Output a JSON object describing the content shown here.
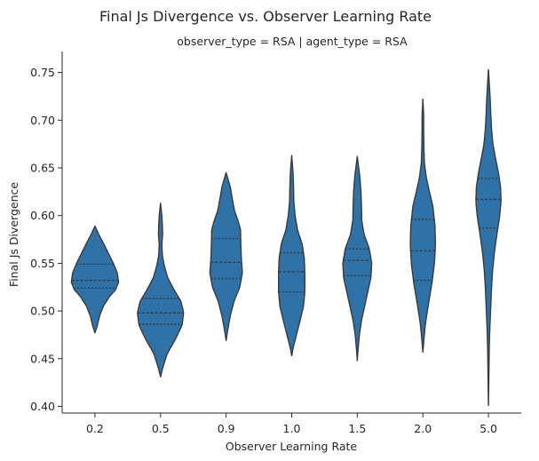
{
  "chart_data": {
    "type": "violin",
    "title": "Final Js Divergence vs. Observer Learning Rate",
    "subtitle": "observer_type = RSA | agent_type = RSA",
    "xlabel": "Observer Learning Rate",
    "ylabel": "Final Js Divergence",
    "ylim": [
      0.393,
      0.772
    ],
    "yticks": [
      "0.40",
      "0.45",
      "0.50",
      "0.55",
      "0.60",
      "0.65",
      "0.70",
      "0.75"
    ],
    "categories": [
      "0.2",
      "0.5",
      "0.9",
      "1.0",
      "1.5",
      "2.0",
      "5.0"
    ],
    "fill_color": "#2f72a8",
    "edge_color": "#3a3a3a",
    "inner": "quartile",
    "violins": [
      {
        "category": "0.2",
        "min": 0.477,
        "max": 0.589,
        "q1": 0.524,
        "median": 0.532,
        "q3": 0.549,
        "profile": [
          [
            0.477,
            0.0
          ],
          [
            0.483,
            0.07
          ],
          [
            0.495,
            0.18
          ],
          [
            0.505,
            0.32
          ],
          [
            0.515,
            0.55
          ],
          [
            0.522,
            0.78
          ],
          [
            0.53,
            0.9
          ],
          [
            0.54,
            0.85
          ],
          [
            0.55,
            0.7
          ],
          [
            0.56,
            0.52
          ],
          [
            0.57,
            0.34
          ],
          [
            0.58,
            0.15
          ],
          [
            0.589,
            0.0
          ]
        ]
      },
      {
        "category": "0.5",
        "min": 0.431,
        "max": 0.613,
        "q1": 0.486,
        "median": 0.498,
        "q3": 0.513,
        "profile": [
          [
            0.431,
            0.0
          ],
          [
            0.44,
            0.08
          ],
          [
            0.455,
            0.25
          ],
          [
            0.47,
            0.56
          ],
          [
            0.485,
            0.82
          ],
          [
            0.498,
            0.88
          ],
          [
            0.51,
            0.78
          ],
          [
            0.522,
            0.52
          ],
          [
            0.535,
            0.27
          ],
          [
            0.548,
            0.14
          ],
          [
            0.558,
            0.07
          ],
          [
            0.57,
            0.05
          ],
          [
            0.58,
            0.08
          ],
          [
            0.59,
            0.07
          ],
          [
            0.6,
            0.05
          ],
          [
            0.613,
            0.0
          ]
        ]
      },
      {
        "category": "0.9",
        "min": 0.469,
        "max": 0.645,
        "q1": 0.534,
        "median": 0.551,
        "q3": 0.576,
        "profile": [
          [
            0.469,
            0.0
          ],
          [
            0.48,
            0.06
          ],
          [
            0.495,
            0.16
          ],
          [
            0.51,
            0.3
          ],
          [
            0.525,
            0.52
          ],
          [
            0.54,
            0.62
          ],
          [
            0.555,
            0.58
          ],
          [
            0.57,
            0.56
          ],
          [
            0.585,
            0.55
          ],
          [
            0.595,
            0.45
          ],
          [
            0.605,
            0.32
          ],
          [
            0.62,
            0.22
          ],
          [
            0.63,
            0.16
          ],
          [
            0.645,
            0.0
          ]
        ]
      },
      {
        "category": "1.0",
        "min": 0.453,
        "max": 0.663,
        "q1": 0.52,
        "median": 0.541,
        "q3": 0.561,
        "profile": [
          [
            0.453,
            0.0
          ],
          [
            0.462,
            0.06
          ],
          [
            0.475,
            0.18
          ],
          [
            0.49,
            0.32
          ],
          [
            0.505,
            0.45
          ],
          [
            0.52,
            0.5
          ],
          [
            0.54,
            0.5
          ],
          [
            0.555,
            0.48
          ],
          [
            0.57,
            0.4
          ],
          [
            0.585,
            0.22
          ],
          [
            0.6,
            0.13
          ],
          [
            0.615,
            0.08
          ],
          [
            0.63,
            0.07
          ],
          [
            0.645,
            0.05
          ],
          [
            0.663,
            0.0
          ]
        ]
      },
      {
        "category": "1.5",
        "min": 0.448,
        "max": 0.662,
        "q1": 0.537,
        "median": 0.553,
        "q3": 0.565,
        "profile": [
          [
            0.448,
            0.0
          ],
          [
            0.46,
            0.03
          ],
          [
            0.475,
            0.08
          ],
          [
            0.49,
            0.16
          ],
          [
            0.505,
            0.28
          ],
          [
            0.52,
            0.4
          ],
          [
            0.535,
            0.52
          ],
          [
            0.55,
            0.55
          ],
          [
            0.565,
            0.46
          ],
          [
            0.58,
            0.26
          ],
          [
            0.595,
            0.17
          ],
          [
            0.61,
            0.16
          ],
          [
            0.625,
            0.14
          ],
          [
            0.64,
            0.1
          ],
          [
            0.662,
            0.0
          ]
        ]
      },
      {
        "category": "2.0",
        "min": 0.457,
        "max": 0.722,
        "q1": 0.532,
        "median": 0.563,
        "q3": 0.596,
        "profile": [
          [
            0.457,
            0.0
          ],
          [
            0.47,
            0.04
          ],
          [
            0.485,
            0.09
          ],
          [
            0.5,
            0.17
          ],
          [
            0.515,
            0.26
          ],
          [
            0.53,
            0.35
          ],
          [
            0.55,
            0.44
          ],
          [
            0.57,
            0.48
          ],
          [
            0.59,
            0.46
          ],
          [
            0.61,
            0.38
          ],
          [
            0.625,
            0.25
          ],
          [
            0.64,
            0.13
          ],
          [
            0.655,
            0.06
          ],
          [
            0.67,
            0.04
          ],
          [
            0.69,
            0.03
          ],
          [
            0.705,
            0.03
          ],
          [
            0.722,
            0.0
          ]
        ]
      },
      {
        "category": "5.0",
        "min": 0.401,
        "max": 0.753,
        "q1": 0.587,
        "median": 0.617,
        "q3": 0.639,
        "profile": [
          [
            0.401,
            0.0
          ],
          [
            0.42,
            0.01
          ],
          [
            0.44,
            0.02
          ],
          [
            0.46,
            0.03
          ],
          [
            0.48,
            0.05
          ],
          [
            0.5,
            0.08
          ],
          [
            0.52,
            0.11
          ],
          [
            0.54,
            0.15
          ],
          [
            0.56,
            0.22
          ],
          [
            0.58,
            0.32
          ],
          [
            0.6,
            0.43
          ],
          [
            0.615,
            0.48
          ],
          [
            0.63,
            0.46
          ],
          [
            0.645,
            0.38
          ],
          [
            0.66,
            0.27
          ],
          [
            0.675,
            0.17
          ],
          [
            0.69,
            0.12
          ],
          [
            0.705,
            0.09
          ],
          [
            0.72,
            0.07
          ],
          [
            0.735,
            0.04
          ],
          [
            0.753,
            0.0
          ]
        ]
      }
    ]
  }
}
